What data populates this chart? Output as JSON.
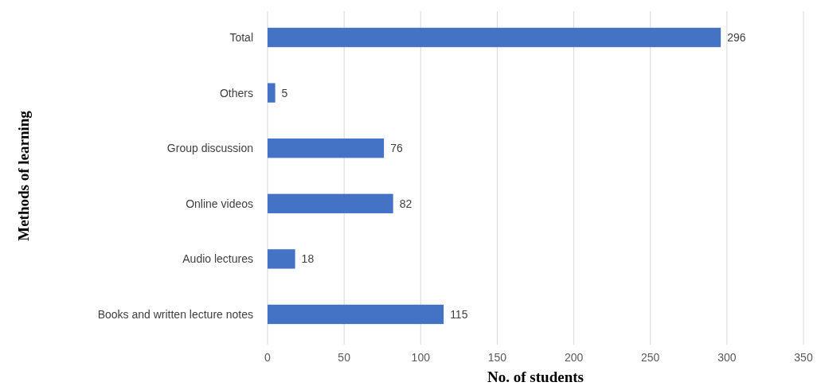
{
  "chart_data": {
    "type": "bar",
    "orientation": "horizontal",
    "xlabel": "No. of students",
    "ylabel": "Methods of learning",
    "categories": [
      "Total",
      "Others",
      "Group discussion",
      "Online videos",
      "Audio lectures",
      "Books and written lecture notes"
    ],
    "values": [
      296,
      5,
      76,
      82,
      18,
      115
    ],
    "color": "#4472c4",
    "xlim": [
      0,
      350
    ],
    "xticks": [
      0,
      50,
      100,
      150,
      200,
      250,
      300,
      350
    ],
    "grid": "x",
    "data_labels": true
  }
}
